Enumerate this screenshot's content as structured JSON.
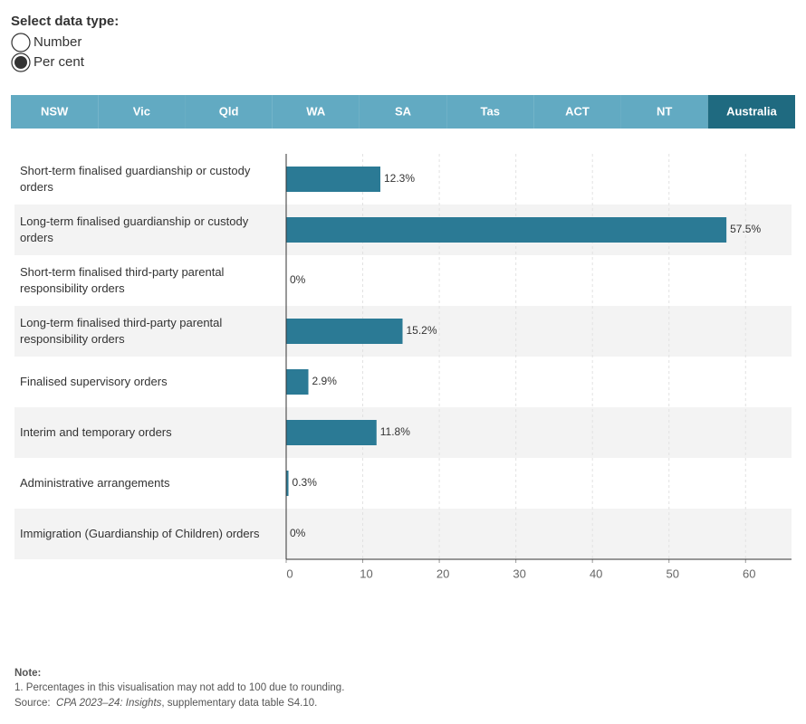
{
  "controls": {
    "label": "Select data type:",
    "options": [
      "Number",
      "Per cent"
    ],
    "selected": 1
  },
  "tabs": {
    "items": [
      "NSW",
      "Vic",
      "Qld",
      "WA",
      "SA",
      "Tas",
      "ACT",
      "NT",
      "Australia"
    ],
    "active": 8
  },
  "chart_data": {
    "type": "bar",
    "orientation": "horizontal",
    "categories": [
      "Short-term finalised guardianship or custody orders",
      "Long-term finalised guardianship or custody orders",
      "Short-term finalised third-party parental responsibility orders",
      "Long-term finalised third-party parental responsibility orders",
      "Finalised supervisory orders",
      "Interim and temporary orders",
      "Administrative arrangements",
      "Immigration (Guardianship of Children) orders"
    ],
    "values": [
      12.3,
      57.5,
      0,
      15.2,
      2.9,
      11.8,
      0.3,
      0
    ],
    "value_labels": [
      "12.3%",
      "57.5%",
      "0%",
      "15.2%",
      "2.9%",
      "11.8%",
      "0.3%",
      "0%"
    ],
    "color": "#2b7a95",
    "xlim": [
      0,
      66
    ],
    "xticks": [
      0,
      10,
      20,
      30,
      40,
      50,
      60
    ],
    "grid": true
  },
  "note": {
    "heading": "Note:",
    "text": "1. Percentages in this visualisation may not add to 100 due to rounding.",
    "source_label": "Source:",
    "source_title": "CPA 2023–24: Insights",
    "source_rest": ", supplementary data table S4.10."
  }
}
